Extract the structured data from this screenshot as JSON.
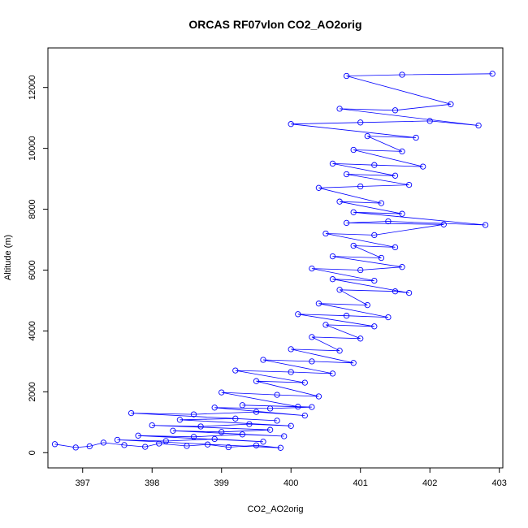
{
  "chart_data": {
    "type": "scatter",
    "title": "ORCAS RF07vlon CO2_AO2orig",
    "xlabel": "CO2_AO2orig",
    "ylabel": "Altitude (m)",
    "xlim": [
      396.5,
      403.05
    ],
    "ylim": [
      -500,
      13300
    ],
    "x_ticks": [
      397,
      398,
      399,
      400,
      401,
      402,
      403
    ],
    "x_tick_labels": [
      "397",
      "398",
      "399",
      "400",
      "401",
      "402",
      "403"
    ],
    "y_ticks": [
      0,
      2000,
      4000,
      6000,
      8000,
      10000,
      12000
    ],
    "y_tick_labels": [
      "0",
      "2000",
      "4000",
      "6000",
      "8000",
      "10000",
      "12000"
    ],
    "grid": false,
    "legend": "none",
    "marker": "open-circle",
    "connect_points": true,
    "color": "#0000ff",
    "series": [
      {
        "x": [
          396.6,
          396.9,
          397.1,
          397.3,
          397.6,
          397.9,
          398.1,
          398.5,
          398.8,
          399.1,
          399.5,
          399.85,
          397.5,
          398.2,
          398.9,
          399.6,
          397.8,
          398.6,
          399.3,
          399.9,
          398.3,
          399.0,
          399.7,
          398.0,
          398.7,
          399.4,
          400.0,
          398.4,
          399.2,
          399.8,
          397.7,
          398.6,
          399.5,
          400.2,
          398.9,
          399.7,
          400.3,
          399.3,
          400.1,
          399.0,
          399.8,
          400.4,
          399.5,
          400.2,
          399.2,
          400.0,
          400.6,
          399.6,
          400.3,
          400.9,
          400.0,
          400.7,
          400.3,
          401.0,
          400.5,
          401.2,
          400.1,
          400.8,
          401.4,
          400.4,
          401.1,
          400.7,
          401.5,
          401.7,
          400.6,
          401.2,
          400.3,
          401.0,
          401.6,
          400.6,
          401.3,
          400.9,
          401.5,
          400.5,
          401.2,
          402.2,
          400.8,
          401.4,
          402.8,
          400.9,
          401.6,
          400.7,
          401.3,
          400.4,
          401.0,
          401.7,
          400.8,
          401.5,
          400.6,
          401.2,
          401.9,
          400.9,
          401.6,
          401.1,
          401.8,
          400.0,
          401.0,
          402.0,
          402.7,
          400.7,
          401.5,
          402.3,
          400.8,
          401.6,
          402.9
        ],
        "y": [
          280,
          170,
          210,
          330,
          250,
          190,
          300,
          220,
          270,
          180,
          240,
          160,
          420,
          380,
          450,
          360,
          560,
          520,
          600,
          540,
          720,
          680,
          750,
          900,
          860,
          940,
          880,
          1080,
          1120,
          1050,
          1300,
          1260,
          1340,
          1220,
          1480,
          1450,
          1500,
          1560,
          1510,
          1980,
          1900,
          1850,
          2350,
          2300,
          2700,
          2650,
          2600,
          3050,
          3000,
          2950,
          3400,
          3350,
          3800,
          3750,
          4200,
          4150,
          4550,
          4500,
          4450,
          4900,
          4850,
          5350,
          5300,
          5250,
          5700,
          5650,
          6050,
          6000,
          6100,
          6450,
          6400,
          6800,
          6750,
          7200,
          7150,
          7500,
          7550,
          7600,
          7480,
          7900,
          7850,
          8250,
          8200,
          8700,
          8750,
          8800,
          9150,
          9100,
          9500,
          9450,
          9400,
          9950,
          9900,
          10400,
          10350,
          10800,
          10850,
          10900,
          10750,
          11300,
          11250,
          11450,
          12380,
          12420,
          12450
        ]
      }
    ]
  }
}
